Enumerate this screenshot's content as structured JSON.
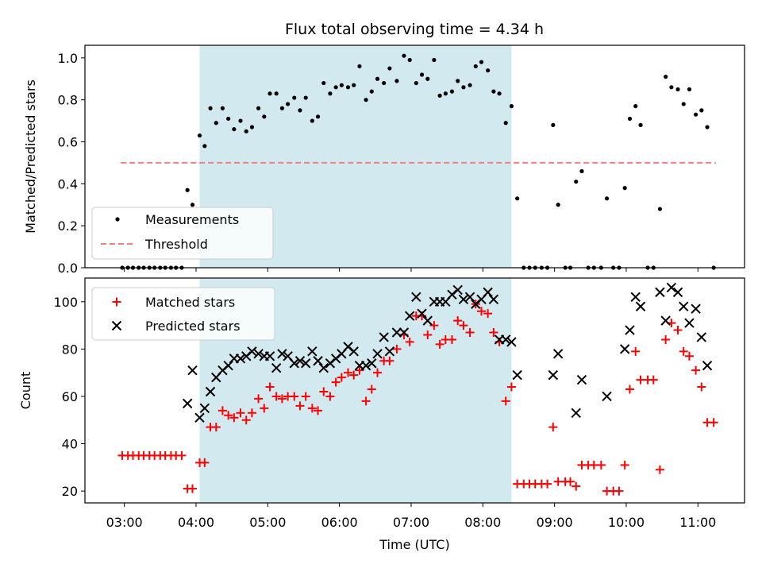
{
  "chart_data": {
    "type": "scatter",
    "title": "Flux total observing time = 4.34 h",
    "xlabel": "Time (UTC)",
    "x_ticks": [
      "03:00",
      "04:00",
      "05:00",
      "06:00",
      "07:00",
      "08:00",
      "09:00",
      "10:00",
      "11:00"
    ],
    "xlim_hours": [
      2.45,
      11.65
    ],
    "highlight_span_hours": [
      4.05,
      8.4
    ],
    "colors": {
      "highlight": "#d2e9ef",
      "measurements": "#000000",
      "threshold": "#f08080",
      "matched": "#ff0000",
      "predicted": "#000000"
    },
    "top_panel": {
      "ylabel": "Matched/Predicted stars",
      "ylim": [
        0.0,
        1.06
      ],
      "y_ticks": [
        "0.0",
        "0.2",
        "0.4",
        "0.6",
        "0.8",
        "1.0"
      ],
      "legend": {
        "position": "lower-left",
        "entries": [
          "Measurements",
          "Threshold"
        ]
      },
      "threshold": {
        "value": 0.5,
        "x_range": [
          2.95,
          11.25
        ]
      },
      "measurements": [
        [
          2.97,
          0
        ],
        [
          3.05,
          0
        ],
        [
          3.12,
          0
        ],
        [
          3.2,
          0
        ],
        [
          3.27,
          0
        ],
        [
          3.35,
          0
        ],
        [
          3.42,
          0
        ],
        [
          3.5,
          0
        ],
        [
          3.57,
          0
        ],
        [
          3.65,
          0
        ],
        [
          3.72,
          0
        ],
        [
          3.8,
          0
        ],
        [
          3.88,
          0.37
        ],
        [
          3.95,
          0.3
        ],
        [
          4.05,
          0.63
        ],
        [
          4.12,
          0.58
        ],
        [
          4.2,
          0.76
        ],
        [
          4.28,
          0.69
        ],
        [
          4.37,
          0.76
        ],
        [
          4.45,
          0.71
        ],
        [
          4.53,
          0.66
        ],
        [
          4.62,
          0.7
        ],
        [
          4.7,
          0.65
        ],
        [
          4.78,
          0.67
        ],
        [
          4.87,
          0.76
        ],
        [
          4.95,
          0.72
        ],
        [
          5.03,
          0.83
        ],
        [
          5.12,
          0.83
        ],
        [
          5.2,
          0.76
        ],
        [
          5.28,
          0.78
        ],
        [
          5.37,
          0.81
        ],
        [
          5.45,
          0.75
        ],
        [
          5.53,
          0.81
        ],
        [
          5.62,
          0.7
        ],
        [
          5.7,
          0.72
        ],
        [
          5.78,
          0.88
        ],
        [
          5.87,
          0.83
        ],
        [
          5.95,
          0.86
        ],
        [
          6.03,
          0.87
        ],
        [
          6.12,
          0.86
        ],
        [
          6.2,
          0.87
        ],
        [
          6.28,
          0.96
        ],
        [
          6.37,
          0.8
        ],
        [
          6.45,
          0.84
        ],
        [
          6.53,
          0.9
        ],
        [
          6.62,
          0.88
        ],
        [
          6.7,
          0.95
        ],
        [
          6.8,
          0.89
        ],
        [
          6.9,
          1.01
        ],
        [
          6.98,
          0.99
        ],
        [
          7.07,
          0.88
        ],
        [
          7.15,
          0.92
        ],
        [
          7.23,
          0.9
        ],
        [
          7.32,
          0.99
        ],
        [
          7.4,
          0.82
        ],
        [
          7.48,
          0.83
        ],
        [
          7.57,
          0.84
        ],
        [
          7.65,
          0.89
        ],
        [
          7.73,
          0.86
        ],
        [
          7.82,
          0.87
        ],
        [
          7.9,
          0.96
        ],
        [
          7.98,
          0.98
        ],
        [
          8.07,
          0.94
        ],
        [
          8.15,
          0.84
        ],
        [
          8.23,
          0.83
        ],
        [
          8.32,
          0.69
        ],
        [
          8.4,
          0.77
        ],
        [
          8.48,
          0.33
        ],
        [
          8.57,
          0
        ],
        [
          8.65,
          0
        ],
        [
          8.73,
          0
        ],
        [
          8.82,
          0
        ],
        [
          8.9,
          0
        ],
        [
          8.98,
          0.68
        ],
        [
          9.05,
          0.3
        ],
        [
          9.15,
          0
        ],
        [
          9.22,
          0
        ],
        [
          9.3,
          0.41
        ],
        [
          9.38,
          0.46
        ],
        [
          9.47,
          0
        ],
        [
          9.55,
          0
        ],
        [
          9.65,
          0
        ],
        [
          9.73,
          0.33
        ],
        [
          9.82,
          0
        ],
        [
          9.9,
          0
        ],
        [
          9.98,
          0.38
        ],
        [
          10.05,
          0.71
        ],
        [
          10.13,
          0.77
        ],
        [
          10.2,
          0.68
        ],
        [
          10.3,
          0
        ],
        [
          10.38,
          0
        ],
        [
          10.47,
          0.28
        ],
        [
          10.55,
          0.91
        ],
        [
          10.63,
          0.86
        ],
        [
          10.72,
          0.85
        ],
        [
          10.8,
          0.78
        ],
        [
          10.88,
          0.85
        ],
        [
          10.97,
          0.73
        ],
        [
          11.05,
          0.75
        ],
        [
          11.13,
          0.67
        ],
        [
          11.22,
          0
        ]
      ]
    },
    "bottom_panel": {
      "ylabel": "Count",
      "ylim": [
        15,
        110
      ],
      "y_ticks": [
        "20",
        "40",
        "60",
        "80",
        "100"
      ],
      "legend": {
        "position": "upper-left",
        "entries": [
          "Matched stars",
          "Predicted stars"
        ]
      },
      "matched": [
        [
          2.97,
          35
        ],
        [
          3.05,
          35
        ],
        [
          3.12,
          35
        ],
        [
          3.2,
          35
        ],
        [
          3.27,
          35
        ],
        [
          3.35,
          35
        ],
        [
          3.42,
          35
        ],
        [
          3.5,
          35
        ],
        [
          3.57,
          35
        ],
        [
          3.65,
          35
        ],
        [
          3.72,
          35
        ],
        [
          3.8,
          35
        ],
        [
          3.88,
          21
        ],
        [
          3.95,
          21
        ],
        [
          4.05,
          32
        ],
        [
          4.12,
          32
        ],
        [
          4.2,
          47
        ],
        [
          4.28,
          47
        ],
        [
          4.37,
          54
        ],
        [
          4.45,
          52
        ],
        [
          4.53,
          51
        ],
        [
          4.62,
          53
        ],
        [
          4.7,
          50
        ],
        [
          4.78,
          53
        ],
        [
          4.87,
          59
        ],
        [
          4.95,
          55
        ],
        [
          5.03,
          64
        ],
        [
          5.12,
          60
        ],
        [
          5.2,
          59
        ],
        [
          5.28,
          60
        ],
        [
          5.37,
          60
        ],
        [
          5.45,
          56
        ],
        [
          5.53,
          60
        ],
        [
          5.62,
          55
        ],
        [
          5.7,
          54
        ],
        [
          5.78,
          62
        ],
        [
          5.87,
          60
        ],
        [
          5.95,
          66
        ],
        [
          6.03,
          68
        ],
        [
          6.12,
          70
        ],
        [
          6.2,
          69
        ],
        [
          6.28,
          71
        ],
        [
          6.37,
          58
        ],
        [
          6.45,
          63
        ],
        [
          6.53,
          70
        ],
        [
          6.62,
          75
        ],
        [
          6.7,
          75
        ],
        [
          6.8,
          80
        ],
        [
          6.9,
          86
        ],
        [
          6.98,
          83
        ],
        [
          7.07,
          94
        ],
        [
          7.15,
          94
        ],
        [
          7.23,
          86
        ],
        [
          7.32,
          90
        ],
        [
          7.4,
          82
        ],
        [
          7.48,
          84
        ],
        [
          7.57,
          84
        ],
        [
          7.65,
          92
        ],
        [
          7.73,
          90
        ],
        [
          7.82,
          87
        ],
        [
          7.9,
          99
        ],
        [
          7.98,
          96
        ],
        [
          8.07,
          95
        ],
        [
          8.15,
          87
        ],
        [
          8.23,
          83
        ],
        [
          8.32,
          58
        ],
        [
          8.4,
          64
        ],
        [
          8.48,
          23
        ],
        [
          8.57,
          23
        ],
        [
          8.65,
          23
        ],
        [
          8.73,
          23
        ],
        [
          8.82,
          23
        ],
        [
          8.9,
          23
        ],
        [
          8.98,
          47
        ],
        [
          9.05,
          24
        ],
        [
          9.15,
          24
        ],
        [
          9.22,
          24
        ],
        [
          9.3,
          22
        ],
        [
          9.38,
          31
        ],
        [
          9.47,
          31
        ],
        [
          9.55,
          31
        ],
        [
          9.65,
          31
        ],
        [
          9.73,
          20
        ],
        [
          9.82,
          20
        ],
        [
          9.9,
          20
        ],
        [
          9.98,
          31
        ],
        [
          10.05,
          63
        ],
        [
          10.13,
          79
        ],
        [
          10.2,
          67
        ],
        [
          10.3,
          67
        ],
        [
          10.38,
          67
        ],
        [
          10.47,
          29
        ],
        [
          10.55,
          84
        ],
        [
          10.63,
          91
        ],
        [
          10.72,
          88
        ],
        [
          10.8,
          79
        ],
        [
          10.88,
          77
        ],
        [
          10.97,
          71
        ],
        [
          11.05,
          64
        ],
        [
          11.13,
          49
        ],
        [
          11.22,
          49
        ]
      ],
      "predicted": [
        [
          3.88,
          57
        ],
        [
          3.95,
          71
        ],
        [
          4.05,
          51
        ],
        [
          4.12,
          55
        ],
        [
          4.2,
          62
        ],
        [
          4.28,
          68
        ],
        [
          4.37,
          71
        ],
        [
          4.45,
          73
        ],
        [
          4.53,
          76
        ],
        [
          4.62,
          76
        ],
        [
          4.7,
          77
        ],
        [
          4.78,
          79
        ],
        [
          4.87,
          78
        ],
        [
          4.95,
          77
        ],
        [
          5.03,
          77
        ],
        [
          5.12,
          72
        ],
        [
          5.2,
          78
        ],
        [
          5.28,
          77
        ],
        [
          5.37,
          74
        ],
        [
          5.45,
          75
        ],
        [
          5.53,
          74
        ],
        [
          5.62,
          79
        ],
        [
          5.7,
          75
        ],
        [
          5.78,
          72
        ],
        [
          5.87,
          74
        ],
        [
          5.95,
          76
        ],
        [
          6.03,
          78
        ],
        [
          6.12,
          81
        ],
        [
          6.2,
          79
        ],
        [
          6.28,
          73
        ],
        [
          6.37,
          73
        ],
        [
          6.45,
          74
        ],
        [
          6.53,
          78
        ],
        [
          6.62,
          85
        ],
        [
          6.7,
          79
        ],
        [
          6.8,
          87
        ],
        [
          6.9,
          87
        ],
        [
          6.98,
          94
        ],
        [
          7.07,
          102
        ],
        [
          7.15,
          95
        ],
        [
          7.23,
          92
        ],
        [
          7.32,
          100
        ],
        [
          7.4,
          100
        ],
        [
          7.48,
          100
        ],
        [
          7.57,
          103
        ],
        [
          7.65,
          105
        ],
        [
          7.73,
          101
        ],
        [
          7.82,
          102
        ],
        [
          7.9,
          99
        ],
        [
          7.98,
          101
        ],
        [
          8.07,
          104
        ],
        [
          8.15,
          101
        ],
        [
          8.23,
          84
        ],
        [
          8.32,
          84
        ],
        [
          8.4,
          83
        ],
        [
          8.48,
          69
        ],
        [
          8.98,
          69
        ],
        [
          9.05,
          78
        ],
        [
          9.3,
          53
        ],
        [
          9.38,
          67
        ],
        [
          9.73,
          60
        ],
        [
          9.98,
          80
        ],
        [
          10.05,
          88
        ],
        [
          10.13,
          102
        ],
        [
          10.2,
          98
        ],
        [
          10.47,
          104
        ],
        [
          10.55,
          92
        ],
        [
          10.63,
          106
        ],
        [
          10.72,
          104
        ],
        [
          10.8,
          98
        ],
        [
          10.88,
          91
        ],
        [
          10.97,
          97
        ],
        [
          11.05,
          85
        ],
        [
          11.13,
          73
        ]
      ]
    }
  }
}
